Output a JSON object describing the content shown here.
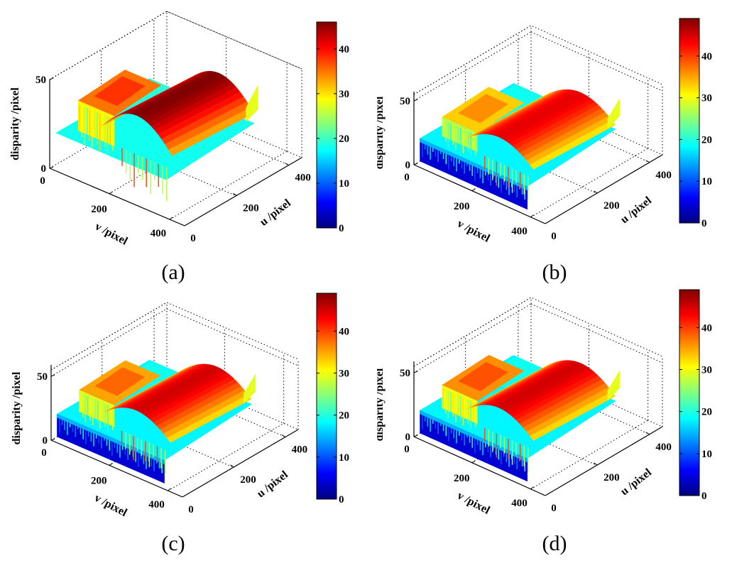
{
  "figure": {
    "panels": [
      {
        "id": "a",
        "caption": "(a)",
        "colorbar_max": 46,
        "has_front_wall": false
      },
      {
        "id": "b",
        "caption": "(b)",
        "colorbar_max": 49,
        "has_front_wall": true
      },
      {
        "id": "c",
        "caption": "(c)",
        "colorbar_max": 49,
        "has_front_wall": true
      },
      {
        "id": "d",
        "caption": "(d)",
        "colorbar_max": 49,
        "has_front_wall": true
      }
    ]
  },
  "chart_data": [
    {
      "type": "surface3d",
      "caption": "(a)",
      "xlabel": "v /pixel",
      "ylabel": "u /pixel",
      "zlabel": "disparity /pixel",
      "x_ticks": [
        "0",
        "200",
        "400"
      ],
      "y_ticks": [
        "0",
        "200",
        "400"
      ],
      "z_ticks": [
        "0",
        "50"
      ],
      "xlim": [
        0,
        450
      ],
      "ylim": [
        0,
        450
      ],
      "zlim": [
        0,
        50
      ],
      "colormap": "jet",
      "colorbar": {
        "ticks": [
          "0",
          "10",
          "20",
          "30",
          "40"
        ],
        "range": [
          0,
          46
        ]
      },
      "grid": true,
      "surface_regions": [
        {
          "name": "ground-plane",
          "disparity": 18
        },
        {
          "name": "left-object",
          "disparity": 35
        },
        {
          "name": "arched-roof",
          "disparity": 44
        },
        {
          "name": "right-wing",
          "disparity": 26
        }
      ]
    },
    {
      "type": "surface3d",
      "caption": "(b)",
      "xlabel": "v /pixel",
      "ylabel": "u /pixel",
      "zlabel": "disparity /pixel",
      "x_ticks": [
        "0",
        "200",
        "400"
      ],
      "y_ticks": [
        "0",
        "200",
        "400"
      ],
      "z_ticks": [
        "0",
        "50"
      ],
      "xlim": [
        0,
        450
      ],
      "ylim": [
        0,
        450
      ],
      "zlim": [
        0,
        55
      ],
      "colormap": "jet",
      "colorbar": {
        "ticks": [
          "0",
          "10",
          "20",
          "30",
          "40"
        ],
        "range": [
          0,
          49
        ]
      },
      "grid": true,
      "surface_regions": [
        {
          "name": "ground-plane",
          "disparity": 18
        },
        {
          "name": "left-object",
          "disparity": 33
        },
        {
          "name": "arched-roof",
          "disparity": 42
        },
        {
          "name": "front-wall",
          "disparity": 3
        }
      ]
    },
    {
      "type": "surface3d",
      "caption": "(c)",
      "xlabel": "v /pixel",
      "ylabel": "u /pixel",
      "zlabel": "disparity /pixel",
      "x_ticks": [
        "0",
        "200",
        "400"
      ],
      "y_ticks": [
        "0",
        "200",
        "400"
      ],
      "z_ticks": [
        "0",
        "50"
      ],
      "xlim": [
        0,
        450
      ],
      "ylim": [
        0,
        450
      ],
      "zlim": [
        0,
        55
      ],
      "colormap": "jet",
      "colorbar": {
        "ticks": [
          "0",
          "10",
          "20",
          "30",
          "40"
        ],
        "range": [
          0,
          49
        ]
      },
      "grid": true,
      "surface_regions": [
        {
          "name": "ground-plane",
          "disparity": 18
        },
        {
          "name": "left-object",
          "disparity": 35
        },
        {
          "name": "arched-roof",
          "disparity": 43
        },
        {
          "name": "front-wall",
          "disparity": 3
        }
      ]
    },
    {
      "type": "surface3d",
      "caption": "(d)",
      "xlabel": "v /pixel",
      "ylabel": "u /pixel",
      "zlabel": "disparity /pixel",
      "x_ticks": [
        "0",
        "200",
        "400"
      ],
      "y_ticks": [
        "0",
        "200",
        "400"
      ],
      "z_ticks": [
        "0",
        "50"
      ],
      "xlim": [
        0,
        450
      ],
      "ylim": [
        0,
        450
      ],
      "zlim": [
        0,
        55
      ],
      "colormap": "jet",
      "colorbar": {
        "ticks": [
          "0",
          "10",
          "20",
          "30",
          "40"
        ],
        "range": [
          0,
          49
        ]
      },
      "grid": true,
      "surface_regions": [
        {
          "name": "ground-plane",
          "disparity": 18
        },
        {
          "name": "left-object",
          "disparity": 36
        },
        {
          "name": "arched-roof",
          "disparity": 43
        },
        {
          "name": "front-wall",
          "disparity": 3
        }
      ]
    }
  ]
}
